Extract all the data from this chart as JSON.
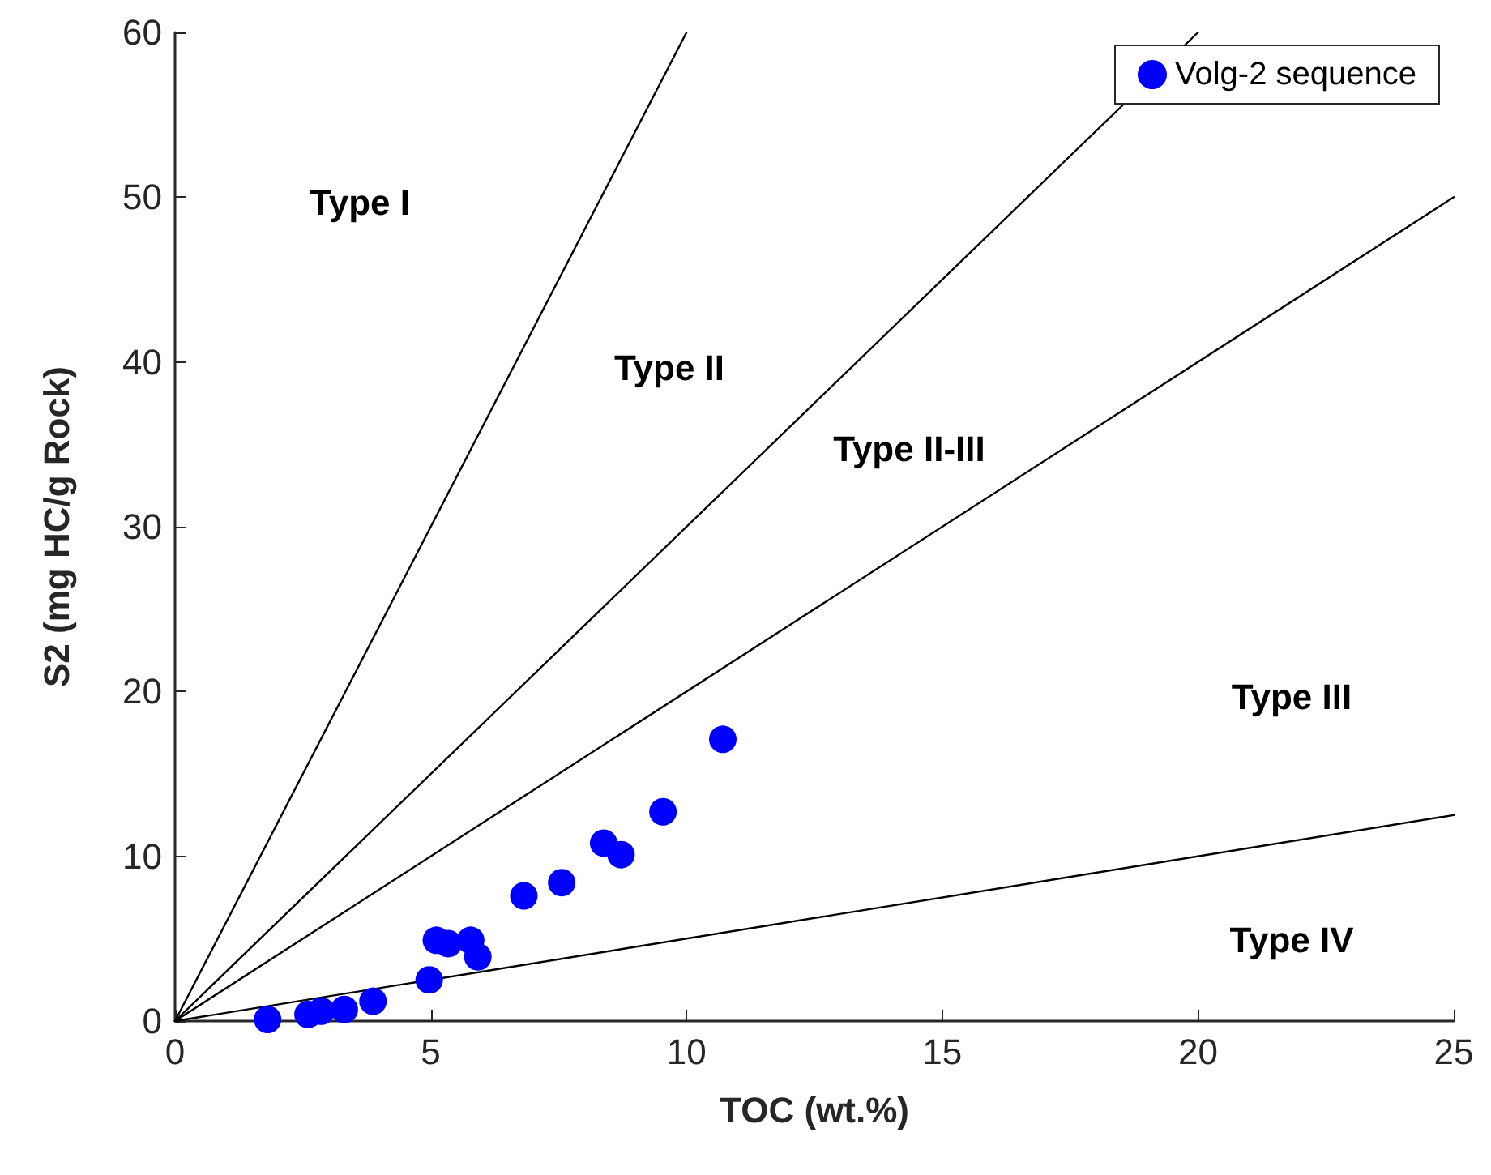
{
  "chart_data": {
    "type": "scatter",
    "xlabel": "TOC (wt.%)",
    "ylabel": "S2 (mg HC/g Rock)",
    "xlim": [
      0,
      25
    ],
    "xticks": [
      0,
      5,
      10,
      15,
      20,
      25
    ],
    "ylim": [
      0,
      60
    ],
    "yticks": [
      0,
      10,
      20,
      30,
      40,
      50,
      60
    ],
    "grid": false,
    "legend": "top right",
    "marker": "circle",
    "series": [
      {
        "name": "Volg-2 sequence",
        "color": "#0000ff",
        "x": [
          1.81,
          2.6,
          2.86,
          3.31,
          3.87,
          4.97,
          5.11,
          5.34,
          5.6,
          5.78,
          5.92,
          6.82,
          7.56,
          8.38,
          8.72,
          9.54,
          10.71
        ],
        "values": [
          0.1,
          0.4,
          0.6,
          0.7,
          1.2,
          2.5,
          4.9,
          4.7,
          null,
          4.9,
          3.9,
          7.6,
          8.4,
          10.8,
          10.1,
          12.7,
          17.1
        ]
      },
      {
        "type": "line",
        "color": "#000000",
        "line_style": "solid",
        "marker": "none",
        "x": [
          0,
          10
        ],
        "values": [
          0,
          60
        ]
      },
      {
        "type": "line",
        "color": "#000000",
        "line_style": "solid",
        "marker": "none",
        "x": [
          0,
          20
        ],
        "values": [
          0,
          60
        ]
      },
      {
        "type": "line",
        "color": "#000000",
        "line_style": "solid",
        "marker": "none",
        "x": [
          0,
          25
        ],
        "values": [
          0,
          50
        ]
      },
      {
        "type": "line",
        "color": "#000000",
        "line_style": "solid",
        "marker": "none",
        "x": [
          0,
          25
        ],
        "values": [
          0,
          12.5
        ]
      }
    ],
    "annotations": [
      "Type I",
      "Type II",
      "Type II-III",
      "Type III",
      "Type IV"
    ]
  }
}
